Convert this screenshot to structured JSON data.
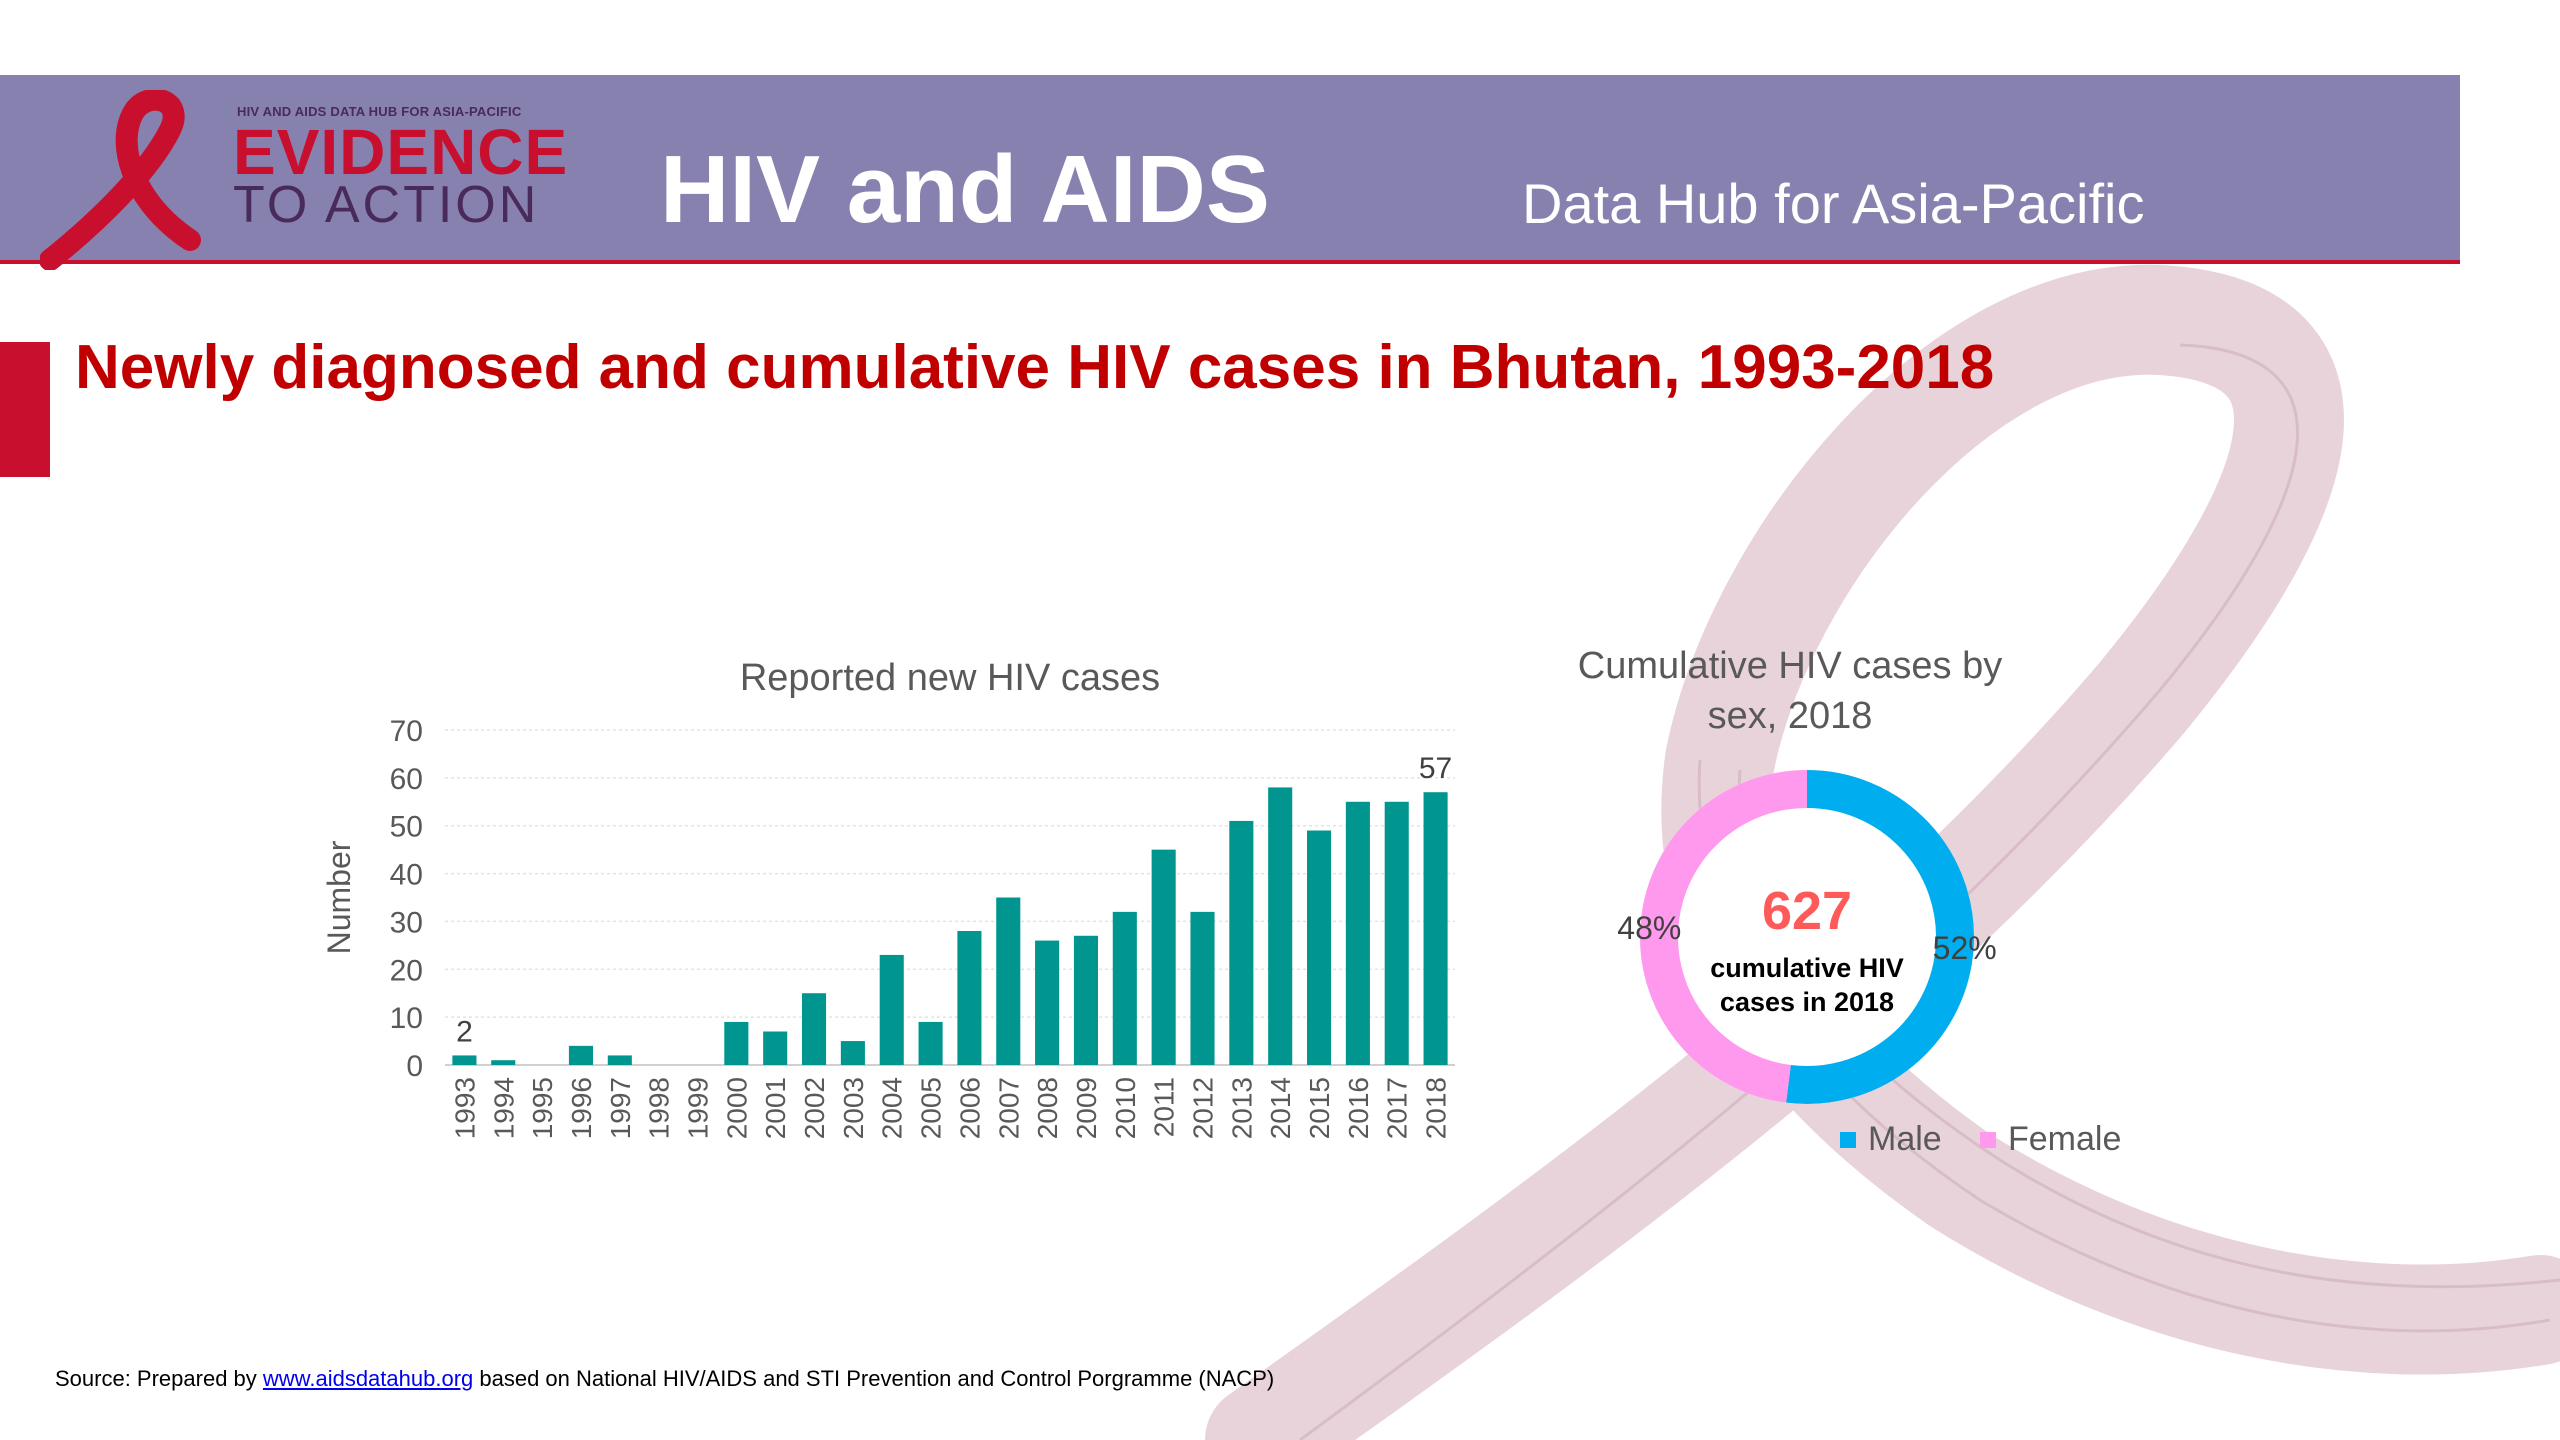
{
  "header": {
    "logo_small": "HIV AND AIDS DATA HUB FOR ASIA-PACIFIC",
    "logo_line1": "EVIDENCE",
    "logo_line2": "TO ACTION",
    "title": "HIV and AIDS",
    "subtitle": "Data Hub for Asia-Pacific"
  },
  "slide_title": "Newly diagnosed and cumulative HIV cases in Bhutan, 1993-2018",
  "colors": {
    "bar": "#00968f",
    "male": "#00adef",
    "female": "#ff99ee",
    "title_red": "#c00000",
    "header": "#8781b0"
  },
  "chart_data": [
    {
      "type": "bar",
      "title": "Reported new HIV cases",
      "xlabel": "",
      "ylabel": "Number",
      "ylim": [
        0,
        70
      ],
      "yticks": [
        0,
        10,
        20,
        30,
        40,
        50,
        60,
        70
      ],
      "categories": [
        "1993",
        "1994",
        "1995",
        "1996",
        "1997",
        "1998",
        "1999",
        "2000",
        "2001",
        "2002",
        "2003",
        "2004",
        "2005",
        "2006",
        "2007",
        "2008",
        "2009",
        "2010",
        "2011",
        "2012",
        "2013",
        "2014",
        "2015",
        "2016",
        "2017",
        "2018"
      ],
      "values": [
        2,
        1,
        0,
        4,
        2,
        0,
        0,
        9,
        7,
        15,
        5,
        23,
        9,
        28,
        35,
        26,
        27,
        32,
        45,
        32,
        51,
        58,
        49,
        55,
        55,
        57
      ],
      "data_labels": [
        {
          "index": 0,
          "text": "2"
        },
        {
          "index": 25,
          "text": "57"
        }
      ],
      "grid": true
    },
    {
      "type": "pie",
      "variant": "donut",
      "title": "Cumulative HIV cases by sex, 2018",
      "center_value": "627",
      "center_label": "cumulative HIV cases in 2018",
      "slices": [
        {
          "name": "Male",
          "value": 52,
          "label": "52%",
          "color": "#00adef"
        },
        {
          "name": "Female",
          "value": 48,
          "label": "48%",
          "color": "#ff99ee"
        }
      ],
      "legend_position": "bottom"
    }
  ],
  "source": {
    "prefix": "Source: Prepared by ",
    "link": "www.aidsdatahub.org",
    "suffix": " based on National HIV/AIDS and STI Prevention and Control Porgramme (NACP)"
  }
}
